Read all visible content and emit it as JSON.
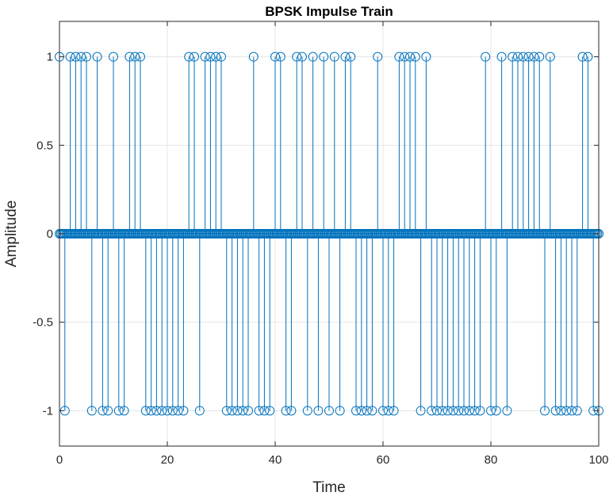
{
  "chart_data": {
    "type": "stem",
    "title": "BPSK Impulse Train",
    "xlabel": "Time",
    "ylabel": "Amplitude",
    "xlim": [
      0,
      100
    ],
    "ylim": [
      -1.2,
      1.2
    ],
    "xticks": [
      0,
      20,
      40,
      60,
      80,
      100
    ],
    "yticks": [
      -1,
      -0.5,
      0,
      0.5,
      1
    ],
    "xtick_labels": [
      "0",
      "20",
      "40",
      "60",
      "80",
      "100"
    ],
    "ytick_labels": [
      "-1",
      "-0.5",
      "0",
      "0.5",
      "1"
    ],
    "grid": true,
    "zero_sample_spacing": 0.25,
    "series": [
      {
        "color": "#0072BD",
        "x": [
          0,
          1,
          2,
          3,
          4,
          5,
          6,
          7,
          8,
          9,
          10,
          11,
          12,
          13,
          14,
          15,
          16,
          17,
          18,
          19,
          20,
          21,
          22,
          23,
          24,
          25,
          26,
          27,
          28,
          29,
          30,
          31,
          32,
          33,
          34,
          35,
          36,
          37,
          38,
          39,
          40,
          41,
          42,
          43,
          44,
          45,
          46,
          47,
          48,
          49,
          50,
          51,
          52,
          53,
          54,
          55,
          56,
          57,
          58,
          59,
          60,
          61,
          62,
          63,
          64,
          65,
          66,
          67,
          68,
          69,
          70,
          71,
          72,
          73,
          74,
          75,
          76,
          77,
          78,
          79,
          80,
          81,
          82,
          83,
          84,
          85,
          86,
          87,
          88,
          89,
          90,
          91,
          92,
          93,
          94,
          95,
          96,
          97,
          98,
          99,
          100
        ],
        "values": [
          1,
          -1,
          1,
          1,
          1,
          1,
          -1,
          1,
          -1,
          -1,
          1,
          -1,
          -1,
          1,
          1,
          1,
          -1,
          -1,
          -1,
          -1,
          -1,
          -1,
          -1,
          -1,
          1,
          1,
          -1,
          1,
          1,
          1,
          1,
          -1,
          -1,
          -1,
          -1,
          -1,
          1,
          -1,
          -1,
          -1,
          1,
          1,
          -1,
          -1,
          1,
          1,
          -1,
          1,
          -1,
          1,
          -1,
          1,
          -1,
          1,
          1,
          -1,
          -1,
          -1,
          -1,
          1,
          -1,
          -1,
          -1,
          1,
          1,
          1,
          1,
          -1,
          1,
          -1,
          -1,
          -1,
          -1,
          -1,
          -1,
          -1,
          -1,
          -1,
          -1,
          1,
          -1,
          -1,
          1,
          -1,
          1,
          1,
          1,
          1,
          1,
          1,
          -1,
          1,
          -1,
          -1,
          -1,
          -1,
          -1,
          1,
          1,
          -1,
          -1
        ]
      }
    ]
  }
}
